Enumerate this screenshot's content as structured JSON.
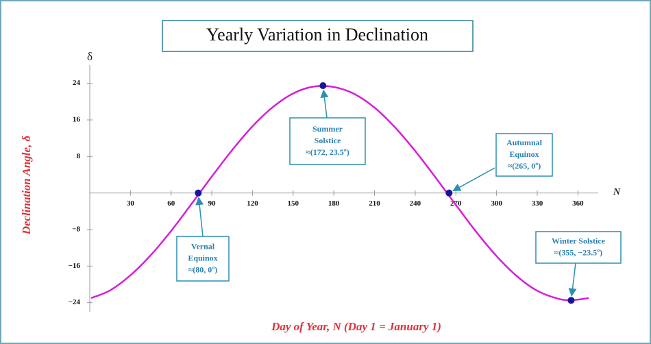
{
  "chart_data": {
    "type": "line",
    "title": "Yearly Variation in Declination",
    "xlabel": "Day of Year, N (Day 1 = January 1)",
    "ylabel": "Declination Angle, δ",
    "x_axis_symbol": "N",
    "y_axis_symbol": "δ",
    "xlim": [
      0,
      375
    ],
    "ylim": [
      -26,
      28
    ],
    "xticks": [
      30,
      60,
      90,
      120,
      150,
      180,
      210,
      240,
      270,
      300,
      330,
      360
    ],
    "yticks": [
      {
        "value": -24,
        "label": "−24"
      },
      {
        "value": -16,
        "label": "−16"
      },
      {
        "value": -8,
        "label": "−8"
      },
      8,
      16,
      24
    ],
    "series": [
      {
        "color": "#d51fd8",
        "x": [
          1,
          15,
          30,
          45,
          60,
          75,
          90,
          105,
          120,
          135,
          150,
          165,
          180,
          195,
          210,
          225,
          240,
          255,
          270,
          285,
          300,
          315,
          330,
          345,
          355,
          368
        ],
        "values": [
          -23.0,
          -21.3,
          -18.0,
          -13.6,
          -8.3,
          -2.4,
          3.6,
          9.4,
          14.6,
          18.8,
          21.8,
          23.3,
          23.2,
          21.7,
          18.7,
          14.4,
          9.2,
          3.4,
          -2.6,
          -8.5,
          -13.8,
          -18.2,
          -21.4,
          -23.1,
          -23.45,
          -23.0
        ]
      }
    ],
    "marker_color": "#15169a",
    "annotations": [
      {
        "text": [
          "Vernal",
          "Equinox",
          "≈(80, 0º)"
        ],
        "x": 80,
        "y": 0
      },
      {
        "text": [
          "Summer",
          "Solstice",
          "≈(172, 23.5º)"
        ],
        "x": 172,
        "y": 23.5
      },
      {
        "text": [
          "Autumnal",
          "Equinox",
          "≈(265, 0º)"
        ],
        "x": 265,
        "y": 0
      },
      {
        "text": [
          "Winter Solstice",
          "≈(355, −23.5º)"
        ],
        "x": 355,
        "y": -23.5
      }
    ]
  }
}
